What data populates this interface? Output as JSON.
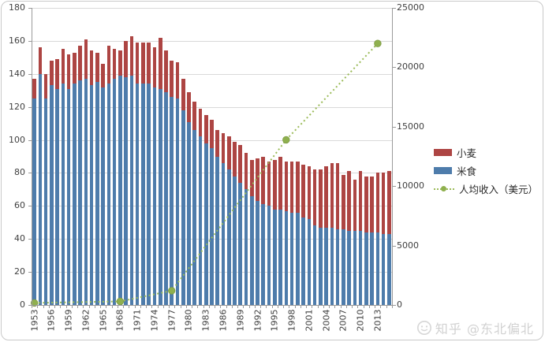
{
  "chart_data": {
    "type": "combo: stacked bar + line",
    "title": "",
    "grid": true,
    "legend_position": "right",
    "categories": [
      1953,
      1954,
      1955,
      1956,
      1957,
      1958,
      1959,
      1960,
      1961,
      1962,
      1963,
      1964,
      1965,
      1966,
      1967,
      1968,
      1969,
      1970,
      1971,
      1972,
      1973,
      1974,
      1975,
      1976,
      1977,
      1978,
      1979,
      1980,
      1981,
      1982,
      1983,
      1984,
      1985,
      1986,
      1987,
      1988,
      1989,
      1990,
      1991,
      1992,
      1993,
      1994,
      1995,
      1996,
      1997,
      1998,
      1999,
      2000,
      2001,
      2002,
      2003,
      2004,
      2005,
      2006,
      2007,
      2008,
      2009,
      2010,
      2011,
      2012,
      2013,
      2014,
      2015
    ],
    "series": [
      {
        "name": "米食",
        "type": "bar",
        "stack": "food",
        "color": "#4e7cab",
        "axis": "left",
        "values": [
          125,
          140,
          125,
          133,
          131,
          134,
          131,
          134,
          136,
          137,
          133,
          135,
          132,
          134,
          137,
          139,
          138,
          139,
          134,
          134,
          134,
          132,
          131,
          129,
          126,
          125,
          118,
          111,
          106,
          102,
          98,
          95,
          90,
          86,
          82,
          78,
          74,
          70,
          66,
          63,
          61,
          60,
          58,
          58,
          57,
          56,
          56,
          53,
          52,
          48,
          47,
          47,
          47,
          46,
          46,
          45,
          45,
          45,
          44,
          44,
          44,
          43,
          43
        ]
      },
      {
        "name": "小麦",
        "type": "bar",
        "stack": "food",
        "color": "#ad4543",
        "axis": "left",
        "values": [
          12,
          16,
          15,
          15,
          18,
          21,
          21,
          19,
          21,
          24,
          21,
          18,
          14,
          23,
          18,
          15,
          22,
          24,
          25,
          25,
          25,
          24,
          31,
          25,
          22,
          22,
          19,
          18,
          17,
          17,
          17,
          17,
          16,
          18,
          20,
          21,
          23,
          22,
          22,
          26,
          29,
          27,
          30,
          32,
          30,
          31,
          31,
          32,
          32,
          34,
          35,
          37,
          39,
          40,
          33,
          36,
          31,
          36,
          34,
          34,
          36,
          37,
          38
        ]
      },
      {
        "name": "人均收入（美元）",
        "type": "line",
        "style": "dotted",
        "color": "#9bbb59",
        "marker_color": "#8fb04e",
        "axis": "right",
        "points": [
          {
            "year": 1953,
            "value": 170
          },
          {
            "year": 1968,
            "value": 300
          },
          {
            "year": 1977,
            "value": 1200
          },
          {
            "year": 1997,
            "value": 13900
          },
          {
            "year": 2013,
            "value": 22000
          }
        ]
      }
    ],
    "left_axis": {
      "min": 0,
      "max": 180,
      "step": 20,
      "labels": [
        "0",
        "20",
        "40",
        "60",
        "80",
        "100",
        "120",
        "140",
        "160",
        "180"
      ]
    },
    "right_axis": {
      "min": 0,
      "max": 25000,
      "step": 5000,
      "labels": [
        "0",
        "5000",
        "10000",
        "15000",
        "20000",
        "25000"
      ]
    },
    "x_axis": {
      "label_every_years": 3,
      "labels": [
        "1953",
        "1956",
        "1959",
        "1962",
        "1965",
        "1968",
        "1971",
        "1974",
        "1977",
        "1980",
        "1983",
        "1986",
        "1989",
        "1992",
        "1995",
        "1998",
        "2001",
        "2004",
        "2007",
        "2010",
        "2013"
      ]
    }
  },
  "legend": {
    "items": [
      {
        "label": "小麦",
        "swatch": "bar",
        "color": "#ad4543"
      },
      {
        "label": "米食",
        "swatch": "bar",
        "color": "#4e7cab"
      },
      {
        "label": "人均收入（美元）",
        "swatch": "line",
        "color": "#9bbb59"
      }
    ]
  },
  "watermark": {
    "text": "知乎 @东北偏北"
  },
  "colors": {
    "gridline": "#d9d9d9",
    "axis": "#9a9a9a",
    "tick_text": "#404040"
  }
}
